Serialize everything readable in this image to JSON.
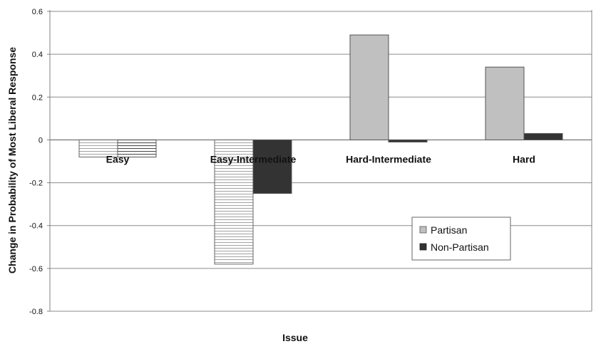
{
  "chart_data": {
    "type": "bar",
    "title": "",
    "xlabel": "Issue",
    "ylabel": "Change in Probability of Most Liberal Response",
    "categories": [
      "Easy",
      "Easy-Intermediate",
      "Hard-Intermediate",
      "Hard"
    ],
    "series": [
      {
        "name": "Partisan",
        "values": [
          -0.08,
          -0.58,
          0.49,
          0.34
        ],
        "color": "#c0c0c0",
        "pattern_on_negative": "horizontal-stripes"
      },
      {
        "name": "Non-Partisan",
        "values": [
          -0.08,
          -0.25,
          -0.01,
          0.03
        ],
        "color": "#333333",
        "pattern_on_negative_easy": "horizontal-stripes"
      }
    ],
    "ylim": [
      -0.8,
      0.6
    ],
    "yticks": [
      "0.6",
      "0.4",
      "0.2",
      "0",
      "-0.2",
      "-0.4",
      "-0.6",
      "-0.8"
    ],
    "grid": true,
    "legend_position": "right"
  }
}
